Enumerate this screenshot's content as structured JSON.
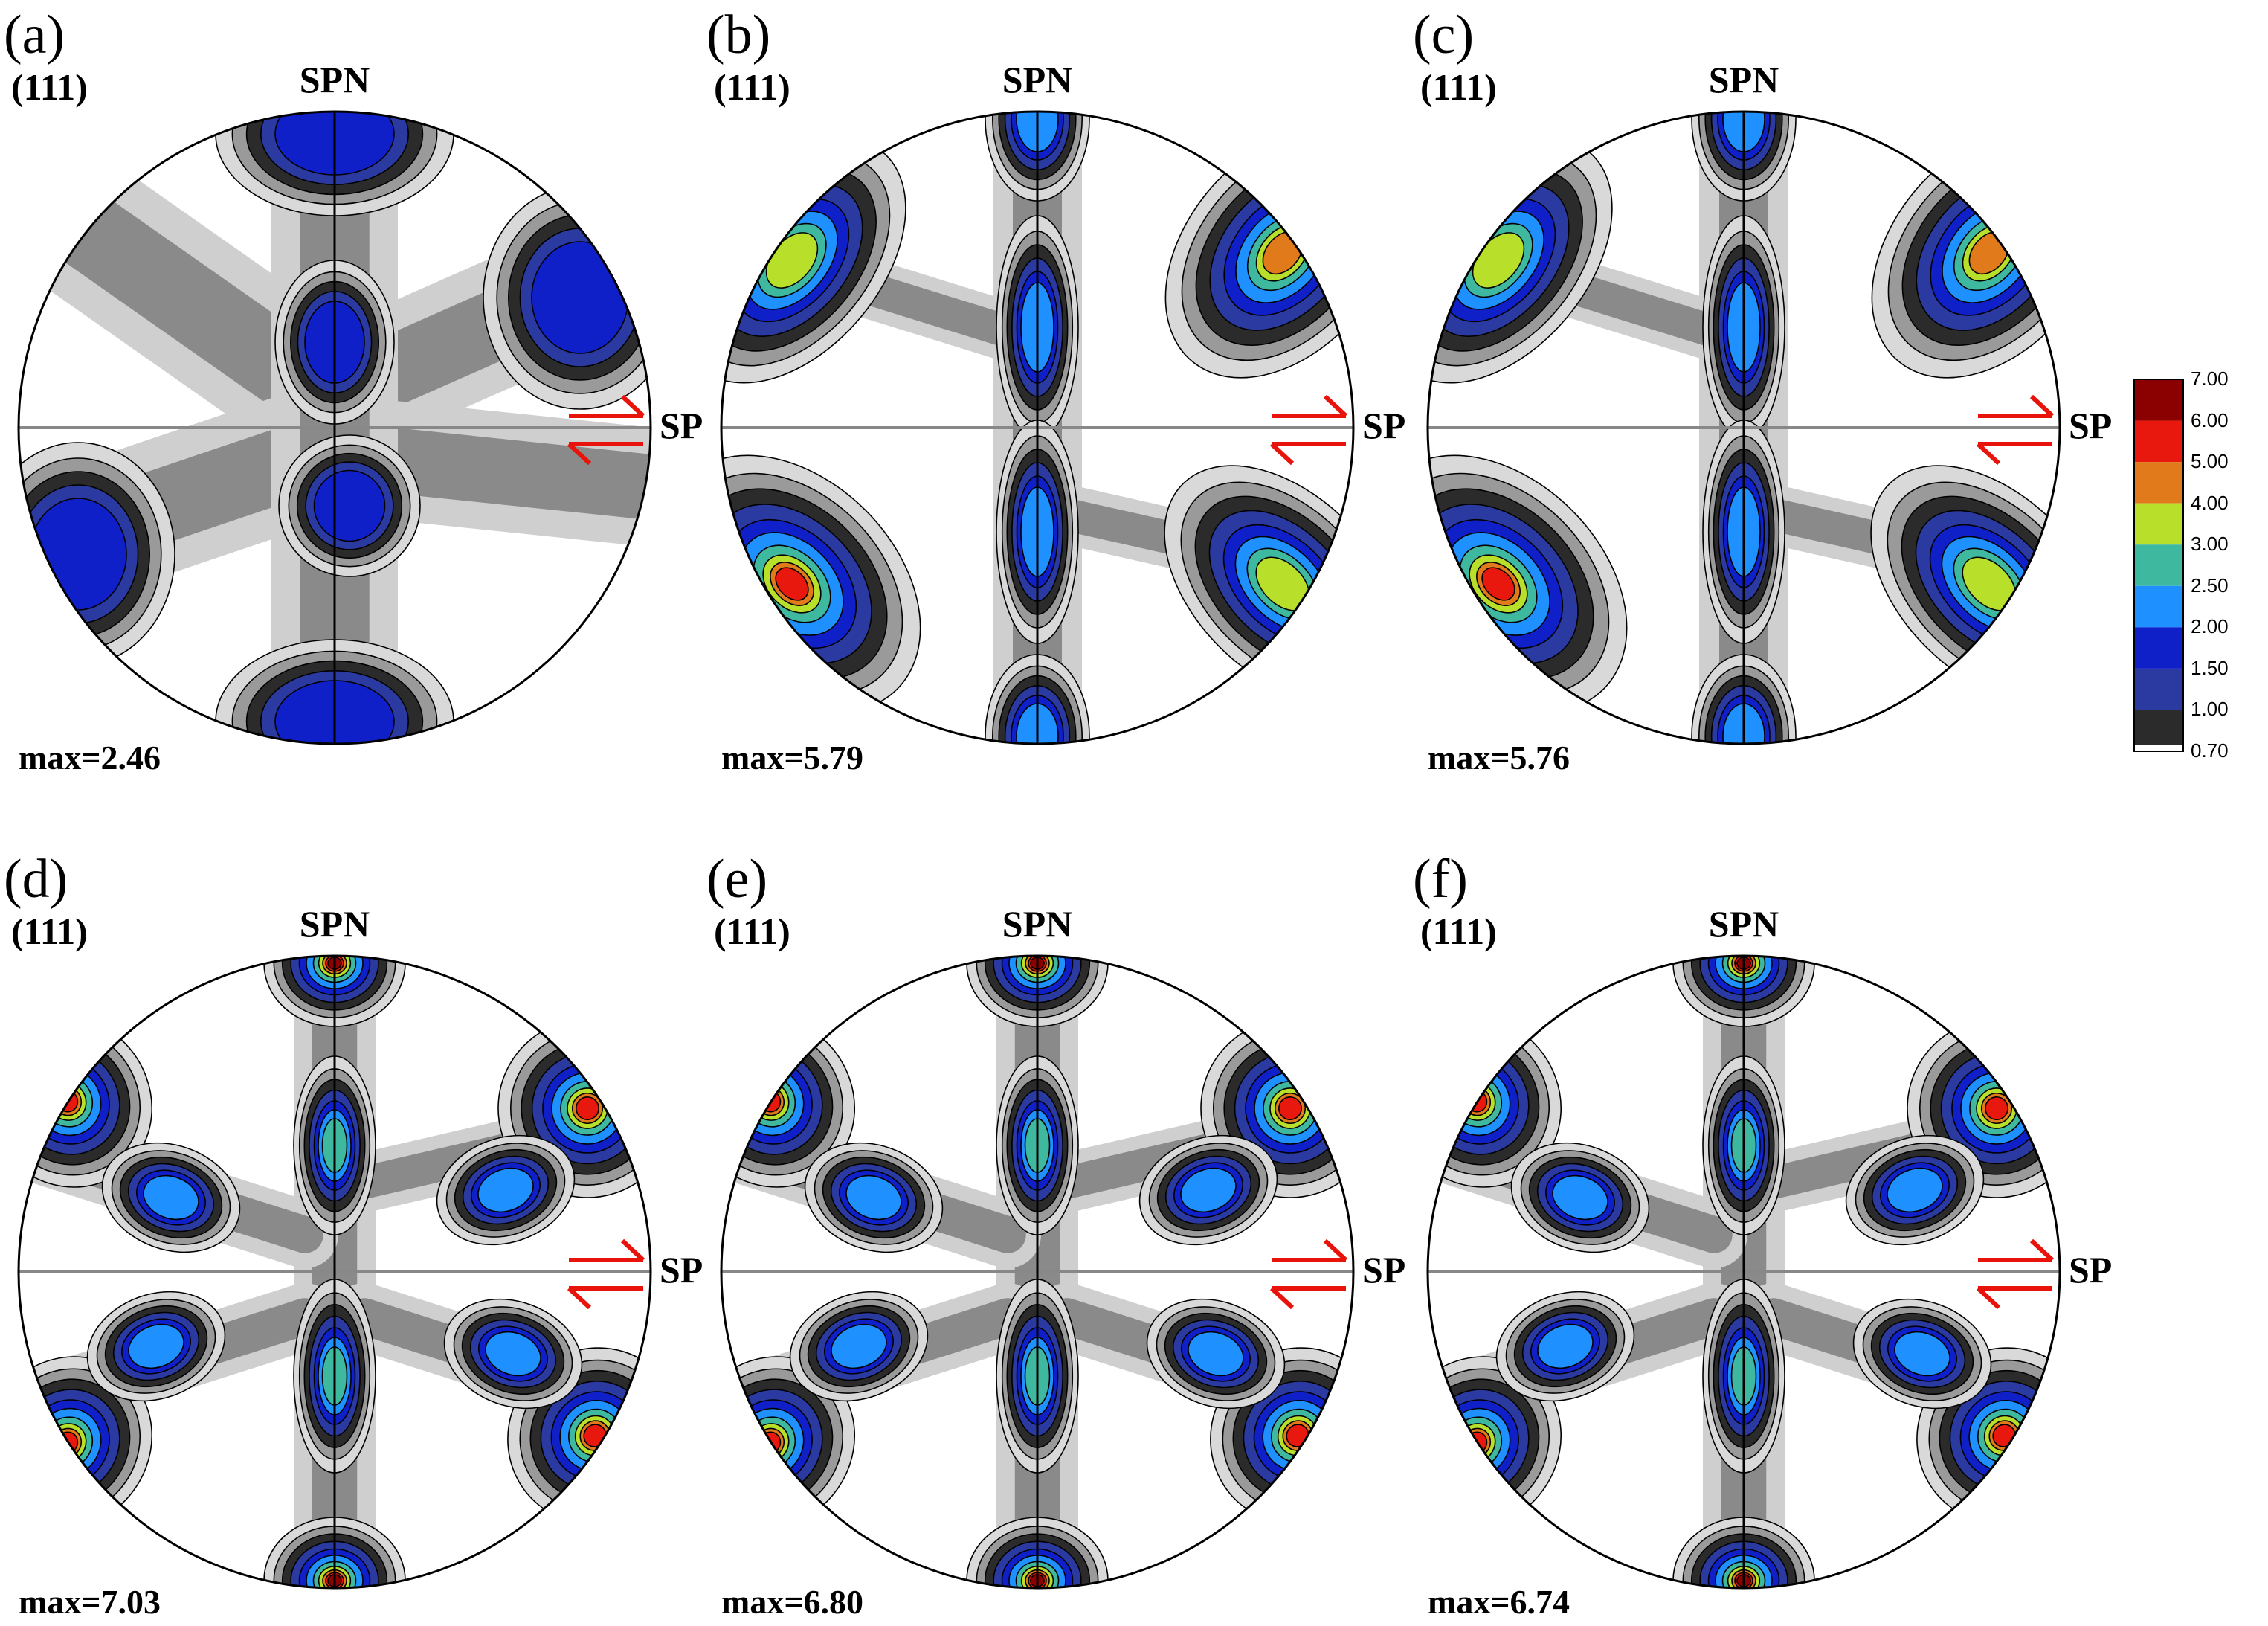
{
  "figure": {
    "panels": [
      {
        "letter": "(a)",
        "plane": "(111)",
        "north_label": "SPN",
        "east_label": "SP",
        "max_label": "max=2.46",
        "max_value": 2.46,
        "style": "weak"
      },
      {
        "letter": "(b)",
        "plane": "(111)",
        "north_label": "SPN",
        "east_label": "SP",
        "max_label": "max=5.79",
        "max_value": 5.79,
        "style": "strong"
      },
      {
        "letter": "(c)",
        "plane": "(111)",
        "north_label": "SPN",
        "east_label": "SP",
        "max_label": "max=5.76",
        "max_value": 5.76,
        "style": "strong"
      },
      {
        "letter": "(d)",
        "plane": "(111)",
        "north_label": "SPN",
        "east_label": "SP",
        "max_label": "max=7.03",
        "max_value": 7.03,
        "style": "six"
      },
      {
        "letter": "(e)",
        "plane": "(111)",
        "north_label": "SPN",
        "east_label": "SP",
        "max_label": "max=6.80",
        "max_value": 6.8,
        "style": "six"
      },
      {
        "letter": "(f)",
        "plane": "(111)",
        "north_label": "SPN",
        "east_label": "SP",
        "max_label": "max=6.74",
        "max_value": 6.74,
        "style": "six"
      }
    ],
    "colorbar": {
      "levels": [
        "7.00",
        "6.00",
        "5.00",
        "4.00",
        "3.00",
        "2.50",
        "2.00",
        "1.50",
        "1.00",
        "0.70"
      ],
      "colors": [
        "#8b0000",
        "#e8180f",
        "#e07a1a",
        "#b8e02a",
        "#3fb8a0",
        "#1e90ff",
        "#1020c8",
        "#2a3aa0",
        "#2b2b2b",
        "#ffffff"
      ]
    },
    "shear_arrow_color": "#e8140c",
    "axis_line_color": "#888888"
  }
}
